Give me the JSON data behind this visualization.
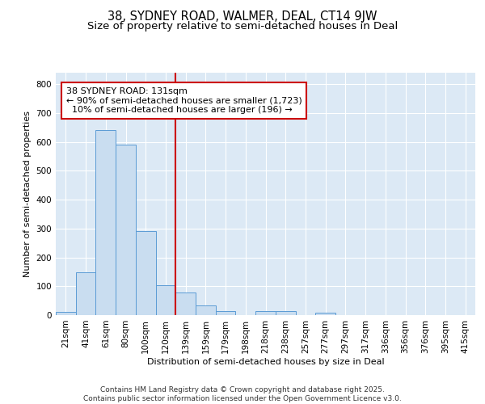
{
  "title_line1": "38, SYDNEY ROAD, WALMER, DEAL, CT14 9JW",
  "title_line2": "Size of property relative to semi-detached houses in Deal",
  "xlabel": "Distribution of semi-detached houses by size in Deal",
  "ylabel": "Number of semi-detached properties",
  "bar_labels": [
    "21sqm",
    "41sqm",
    "61sqm",
    "80sqm",
    "100sqm",
    "120sqm",
    "139sqm",
    "159sqm",
    "179sqm",
    "198sqm",
    "218sqm",
    "238sqm",
    "257sqm",
    "277sqm",
    "297sqm",
    "317sqm",
    "336sqm",
    "356sqm",
    "376sqm",
    "395sqm",
    "415sqm"
  ],
  "bar_values": [
    10,
    148,
    641,
    590,
    290,
    105,
    78,
    35,
    14,
    0,
    13,
    13,
    0,
    8,
    0,
    0,
    0,
    0,
    0,
    0,
    0
  ],
  "bar_color": "#c9ddf0",
  "bar_edge_color": "#5b9bd5",
  "background_color": "#dce9f5",
  "grid_color": "#ffffff",
  "vline_color": "#cc0000",
  "annotation_text": "38 SYDNEY ROAD: 131sqm\n← 90% of semi-detached houses are smaller (1,723)\n  10% of semi-detached houses are larger (196) →",
  "annotation_box_color": "#cc0000",
  "ylim": [
    0,
    840
  ],
  "yticks": [
    0,
    100,
    200,
    300,
    400,
    500,
    600,
    700,
    800
  ],
  "footnote": "Contains HM Land Registry data © Crown copyright and database right 2025.\nContains public sector information licensed under the Open Government Licence v3.0.",
  "title_fontsize": 10.5,
  "subtitle_fontsize": 9.5,
  "axis_fontsize": 8,
  "tick_fontsize": 7.5,
  "footnote_fontsize": 6.5,
  "annotation_fontsize": 8
}
